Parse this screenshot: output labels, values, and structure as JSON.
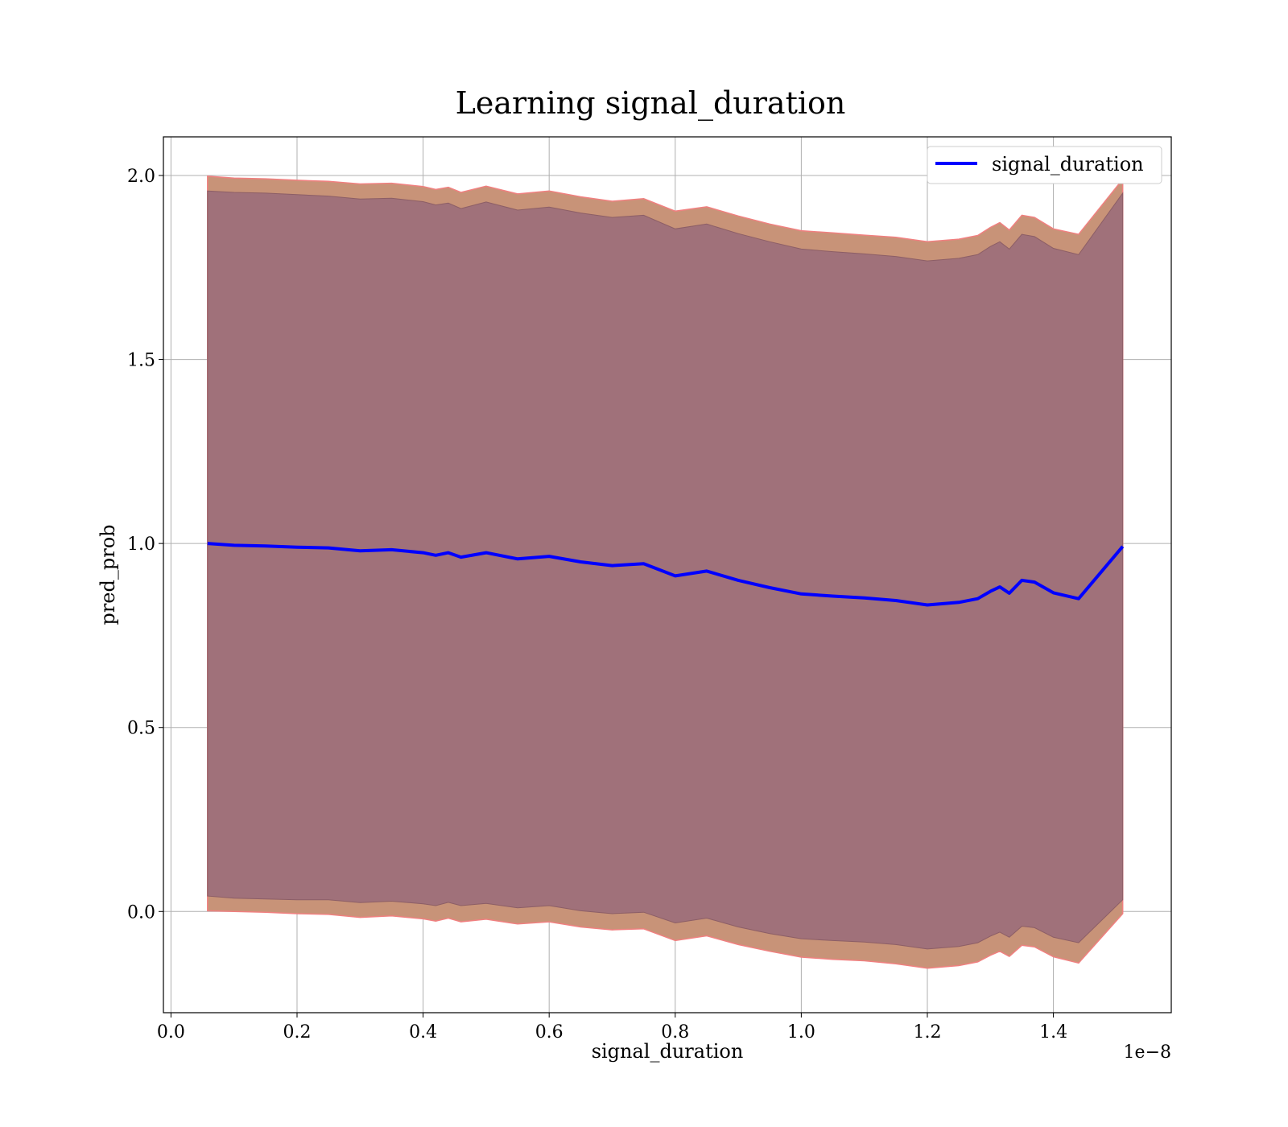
{
  "chart_data": {
    "type": "line",
    "title": "Learning signal_duration",
    "xlabel": "signal_duration",
    "ylabel": "pred_prob",
    "x_offset_text": "1e−8",
    "xlim": [
      -0.012,
      1.587
    ],
    "ylim": [
      -0.275,
      2.105
    ],
    "xticks": [
      0.0,
      0.2,
      0.4,
      0.6,
      0.8,
      1.0,
      1.2,
      1.4
    ],
    "xtick_labels": [
      "0.0",
      "0.2",
      "0.4",
      "0.6",
      "0.8",
      "1.0",
      "1.2",
      "1.4"
    ],
    "yticks": [
      0.0,
      0.5,
      1.0,
      1.5,
      2.0
    ],
    "ytick_labels": [
      "0.0",
      "0.5",
      "1.0",
      "1.5",
      "2.0"
    ],
    "grid": true,
    "legend": {
      "position": "top-right",
      "entries": [
        "signal_duration"
      ]
    },
    "colors": {
      "line": "#0000ff",
      "inner_band": "#a0717a",
      "outer_band": "#c89378",
      "band_edge": "#f08080"
    },
    "series": [
      {
        "name": "signal_duration",
        "x": [
          0.058,
          0.1,
          0.15,
          0.2,
          0.25,
          0.3,
          0.35,
          0.4,
          0.42,
          0.44,
          0.46,
          0.5,
          0.55,
          0.6,
          0.65,
          0.7,
          0.75,
          0.8,
          0.85,
          0.9,
          0.95,
          1.0,
          1.05,
          1.1,
          1.15,
          1.2,
          1.25,
          1.28,
          1.3,
          1.315,
          1.33,
          1.35,
          1.37,
          1.4,
          1.44,
          1.51
        ],
        "y": [
          1.0,
          0.995,
          0.993,
          0.99,
          0.988,
          0.98,
          0.983,
          0.975,
          0.968,
          0.975,
          0.963,
          0.975,
          0.958,
          0.965,
          0.95,
          0.94,
          0.945,
          0.912,
          0.925,
          0.9,
          0.88,
          0.863,
          0.857,
          0.852,
          0.845,
          0.833,
          0.84,
          0.85,
          0.87,
          0.882,
          0.865,
          0.9,
          0.895,
          0.866,
          0.85,
          0.992
        ],
        "band_inner_upper": [
          1.958,
          1.954,
          1.952,
          1.948,
          1.944,
          1.936,
          1.938,
          1.929,
          1.92,
          1.925,
          1.91,
          1.928,
          1.906,
          1.914,
          1.898,
          1.886,
          1.892,
          1.855,
          1.868,
          1.842,
          1.82,
          1.8,
          1.793,
          1.787,
          1.78,
          1.768,
          1.775,
          1.785,
          1.807,
          1.82,
          1.8,
          1.84,
          1.834,
          1.802,
          1.785,
          1.952
        ],
        "band_inner_lower": [
          0.042,
          0.036,
          0.034,
          0.032,
          0.032,
          0.024,
          0.028,
          0.021,
          0.016,
          0.025,
          0.016,
          0.022,
          0.01,
          0.016,
          0.002,
          -0.006,
          -0.002,
          -0.031,
          -0.018,
          -0.042,
          -0.06,
          -0.074,
          -0.079,
          -0.083,
          -0.09,
          -0.102,
          -0.095,
          -0.085,
          -0.067,
          -0.056,
          -0.07,
          -0.04,
          -0.044,
          -0.07,
          -0.085,
          0.032
        ],
        "band_outer_upper": [
          1.998,
          1.993,
          1.991,
          1.987,
          1.984,
          1.977,
          1.979,
          1.97,
          1.962,
          1.968,
          1.954,
          1.971,
          1.95,
          1.958,
          1.942,
          1.93,
          1.937,
          1.903,
          1.915,
          1.89,
          1.868,
          1.85,
          1.844,
          1.838,
          1.832,
          1.82,
          1.827,
          1.837,
          1.859,
          1.872,
          1.852,
          1.892,
          1.886,
          1.855,
          1.84,
          1.99
        ],
        "band_outer_lower": [
          0.002,
          0.0,
          -0.002,
          -0.006,
          -0.008,
          -0.016,
          -0.012,
          -0.02,
          -0.026,
          -0.018,
          -0.028,
          -0.021,
          -0.034,
          -0.028,
          -0.042,
          -0.05,
          -0.047,
          -0.079,
          -0.066,
          -0.09,
          -0.108,
          -0.124,
          -0.13,
          -0.134,
          -0.142,
          -0.154,
          -0.147,
          -0.137,
          -0.119,
          -0.108,
          -0.122,
          -0.092,
          -0.096,
          -0.123,
          -0.14,
          -0.006
        ]
      }
    ]
  }
}
